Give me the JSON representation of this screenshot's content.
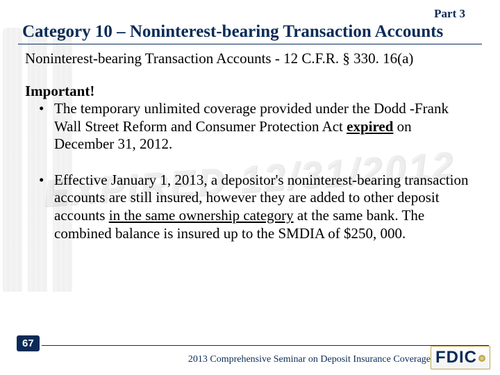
{
  "header": {
    "part_label": "Part  3",
    "category_title": "Category 10 – Noninterest-bearing Transaction Accounts",
    "subtitle": "Noninterest-bearing Transaction Accounts - 12 C.F.R. § 330. 16(a)"
  },
  "body": {
    "important_label": "Important!",
    "bullets": [
      {
        "pre": "The temporary unlimited coverage provided under the Dodd -Frank Wall Street Reform and Consumer Protection Act ",
        "underlined_bold": "expired",
        "post": " on December 31, 2012."
      },
      {
        "pre": "Effective January 1, 2013, a depositor's noninterest-bearing transaction accounts are still insured, however they are added to other deposit accounts ",
        "underlined": "in the same ownership category",
        "post": " at the same bank. The combined balance is insured up to the SMDIA of $250, 000."
      }
    ]
  },
  "watermark": {
    "text": "EXPIRED 12/31/2012"
  },
  "footer": {
    "page_number": "67",
    "caption": "2013 Comprehensive Seminar on Deposit Insurance Coverage",
    "logo_text": "FDIC"
  },
  "colors": {
    "brand_navy": "#0a2b57",
    "gold": "#bfa94b",
    "text": "#000000",
    "bg": "#ffffff"
  }
}
